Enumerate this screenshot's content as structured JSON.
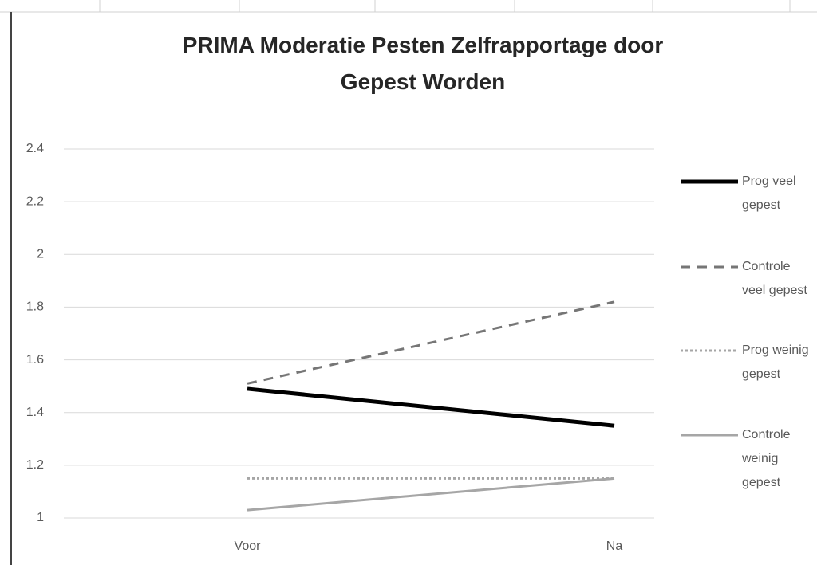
{
  "chart_data": {
    "type": "line",
    "title": "PRIMA Moderatie Pesten Zelfrapportage door Gepest Worden",
    "categories": [
      "Voor",
      "Na"
    ],
    "series": [
      {
        "name": "Prog veel gepest",
        "color": "#000000",
        "line_style": "solid",
        "line_width": 5,
        "values": [
          1.49,
          1.35
        ]
      },
      {
        "name": "Controle veel gepest",
        "color": "#767676",
        "line_style": "dashed",
        "line_width": 3,
        "values": [
          1.51,
          1.82
        ]
      },
      {
        "name": "Prog weinig gepest",
        "color": "#a6a6a6",
        "line_style": "dotted",
        "line_width": 3,
        "values": [
          1.15,
          1.15
        ]
      },
      {
        "name": "Controle weinig gepest",
        "color": "#a6a6a6",
        "line_style": "solid",
        "line_width": 3,
        "values": [
          1.03,
          1.15
        ]
      }
    ],
    "ylim": [
      1,
      2.4
    ],
    "yticks": [
      1,
      1.2,
      1.4,
      1.6,
      1.8,
      2,
      2.2,
      2.4
    ],
    "grid": true,
    "legend": "right"
  }
}
